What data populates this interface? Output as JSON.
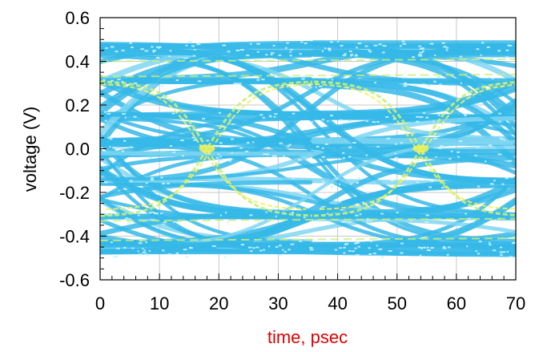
{
  "chart_data": {
    "type": "eye-diagram",
    "xlabel": "time, psec",
    "ylabel": "voltage (V)",
    "xlim": [
      0,
      70
    ],
    "ylim": [
      -0.6,
      0.6
    ],
    "x_ticks": [
      "0",
      "10",
      "20",
      "30",
      "40",
      "50",
      "60",
      "70"
    ],
    "y_ticks": [
      "0.6",
      "0.4",
      "0.2",
      "0.0",
      "-0.2",
      "-0.4",
      "-0.6"
    ],
    "x_tick_values": [
      0,
      10,
      20,
      30,
      40,
      50,
      60,
      70
    ],
    "y_tick_values": [
      0.6,
      0.4,
      0.2,
      0.0,
      -0.2,
      -0.4,
      -0.6
    ],
    "grid": true,
    "colors": {
      "trace": "#35b8e8",
      "trace_light": "#7fd6f2",
      "density_high": "#c8f07a",
      "density_peak": "#f2f25a",
      "grid": "#c8c8c8",
      "xlabel": "#e00000",
      "ylabel": "#000000"
    },
    "levels": [
      -0.47,
      -0.44,
      -0.31,
      -0.15,
      -0.03,
      0.03,
      0.15,
      0.31,
      0.44,
      0.47
    ],
    "crossing_times": [
      18,
      54
    ],
    "crossing_voltage": 0.0,
    "unit_interval_ps": 36
  }
}
